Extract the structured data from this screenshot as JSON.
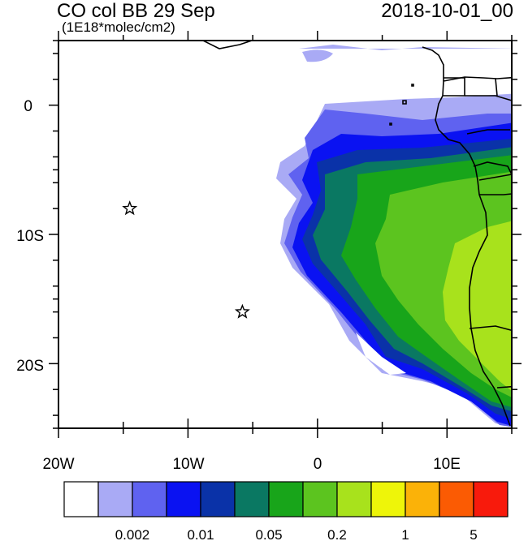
{
  "header": {
    "title": "CO col BB 29 Sep",
    "units": "(1E18*molec/cm2)",
    "timestamp": "2018-10-01_00"
  },
  "axes": {
    "x_tick_labels": [
      "20W",
      "10W",
      "0",
      "10E"
    ],
    "y_tick_labels": [
      "0",
      "10S",
      "20S"
    ],
    "lon_range": [
      -20,
      15
    ],
    "lat_range": [
      -25,
      5
    ]
  },
  "colorbar": {
    "colors": [
      "#ffffff",
      "#a9aaf5",
      "#5f62f0",
      "#0a12f2",
      "#0a32a8",
      "#0a7862",
      "#18a51a",
      "#5cc41f",
      "#a8e21c",
      "#eef509",
      "#fbb208",
      "#fb5b03",
      "#f81a0c"
    ],
    "labels": [
      "0.002",
      "0.01",
      "0.05",
      "0.2",
      "1",
      "5"
    ]
  },
  "markers": [
    {
      "name": "star-marker",
      "lon": -14.5,
      "lat": -8
    },
    {
      "name": "star-marker",
      "lon": -5.8,
      "lat": -16
    }
  ]
}
